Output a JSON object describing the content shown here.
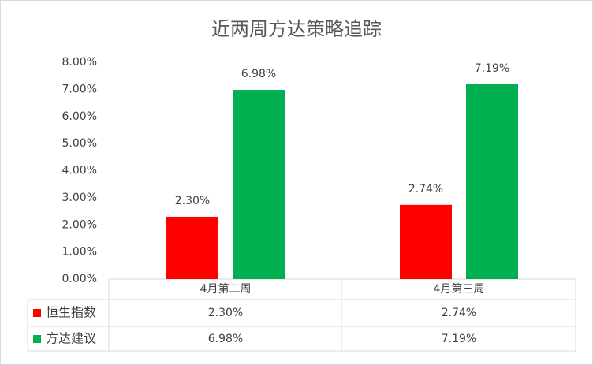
{
  "chart_data": {
    "type": "bar",
    "title": "近两周方达策略追踪",
    "categories": [
      "4月第二周",
      "4月第三周"
    ],
    "series": [
      {
        "name": "恒生指数",
        "color": "#ff0000",
        "values": [
          2.3,
          2.74
        ],
        "value_labels": [
          "2.30%",
          "2.74%"
        ]
      },
      {
        "name": "方达建议",
        "color": "#00b050",
        "values": [
          6.98,
          7.19
        ],
        "value_labels": [
          "6.98%",
          "7.19%"
        ]
      }
    ],
    "ylim": [
      0,
      8
    ],
    "yticks": [
      {
        "value": 0,
        "label": "0.00%"
      },
      {
        "value": 1,
        "label": "1.00%"
      },
      {
        "value": 2,
        "label": "2.00%"
      },
      {
        "value": 3,
        "label": "3.00%"
      },
      {
        "value": 4,
        "label": "4.00%"
      },
      {
        "value": 5,
        "label": "5.00%"
      },
      {
        "value": 6,
        "label": "6.00%"
      },
      {
        "value": 7,
        "label": "7.00%"
      },
      {
        "value": 8,
        "label": "8.00%"
      }
    ],
    "grid": false
  }
}
